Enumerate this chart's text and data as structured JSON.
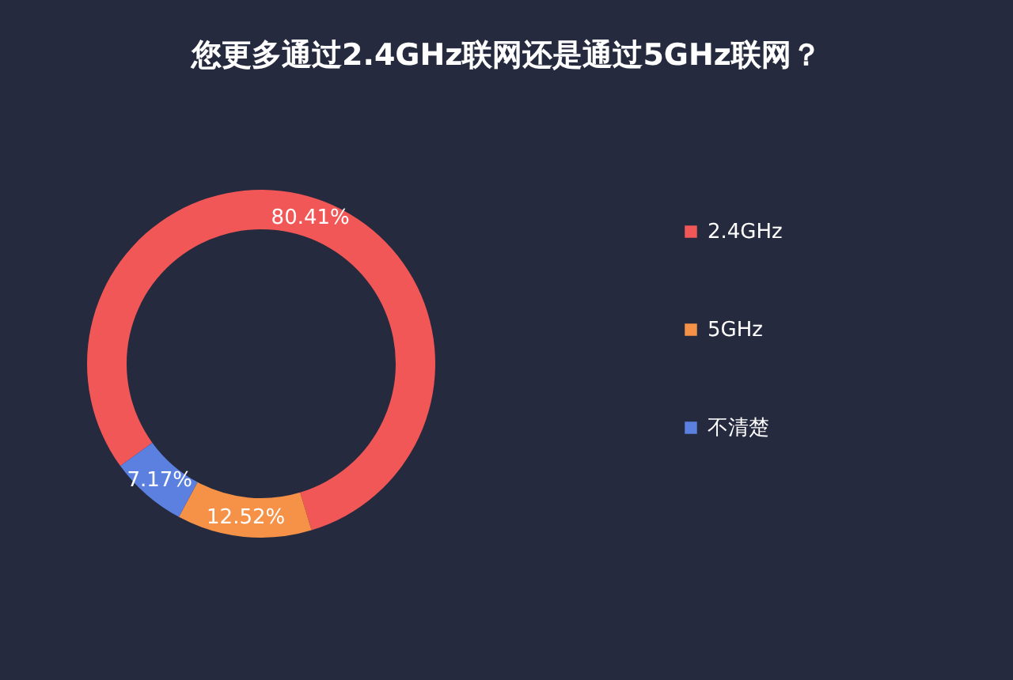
{
  "chart_data": {
    "type": "donut",
    "title": "您更多通过2.4GHz联网还是通过5GHz联网？",
    "categories": [
      "2.4GHz",
      "5GHz",
      "不清楚"
    ],
    "values": [
      80.41,
      12.52,
      7.17
    ],
    "colors": [
      "#f25757",
      "#f59247",
      "#5b80e0"
    ],
    "value_labels": [
      "80.41%",
      "12.52%",
      "7.17%"
    ],
    "legend": "right"
  }
}
